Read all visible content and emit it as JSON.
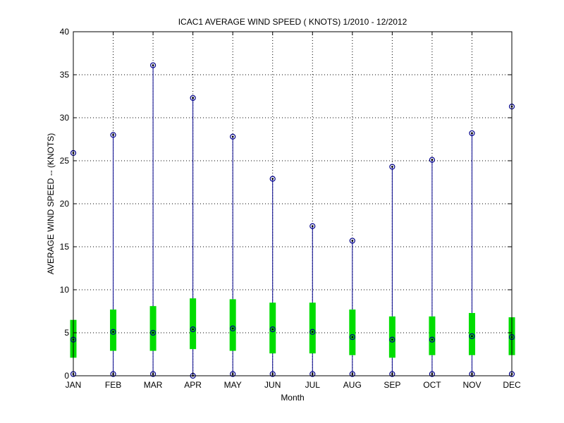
{
  "chart_data": {
    "type": "box",
    "title": "ICAC1  AVERAGE WIND SPEED ( KNOTS) 1/2010 - 12/2012",
    "xlabel": "Month",
    "ylabel": "AVERAGE WIND SPEED -- (KNOTS)",
    "ylim": [
      0,
      40
    ],
    "yticks": [
      0,
      5,
      10,
      15,
      20,
      25,
      30,
      35,
      40
    ],
    "grid": true,
    "categories": [
      "JAN",
      "FEB",
      "MAR",
      "APR",
      "MAY",
      "JUN",
      "JUL",
      "AUG",
      "SEP",
      "OCT",
      "NOV",
      "DEC"
    ],
    "series": [
      {
        "min": [
          0.2,
          0.2,
          0.2,
          0.0,
          0.2,
          0.2,
          0.2,
          0.2,
          0.2,
          0.2,
          0.2,
          0.2
        ],
        "q1": [
          2.1,
          2.9,
          2.9,
          3.1,
          2.9,
          2.6,
          2.6,
          2.4,
          2.1,
          2.4,
          2.4,
          2.4
        ],
        "median": [
          4.2,
          5.1,
          5.0,
          5.4,
          5.5,
          5.4,
          5.1,
          4.5,
          4.2,
          4.2,
          4.6,
          4.5
        ],
        "q3": [
          6.5,
          7.7,
          8.1,
          9.0,
          8.9,
          8.5,
          8.5,
          7.7,
          6.9,
          6.9,
          7.3,
          6.8
        ],
        "max": [
          25.9,
          28.0,
          36.1,
          32.3,
          27.8,
          22.9,
          17.4,
          15.7,
          24.3,
          25.1,
          28.2,
          31.3
        ]
      }
    ],
    "colors": {
      "whisker": "#00008b",
      "box": "#00dd00",
      "marker": "#000000",
      "grid": "#000000"
    }
  }
}
